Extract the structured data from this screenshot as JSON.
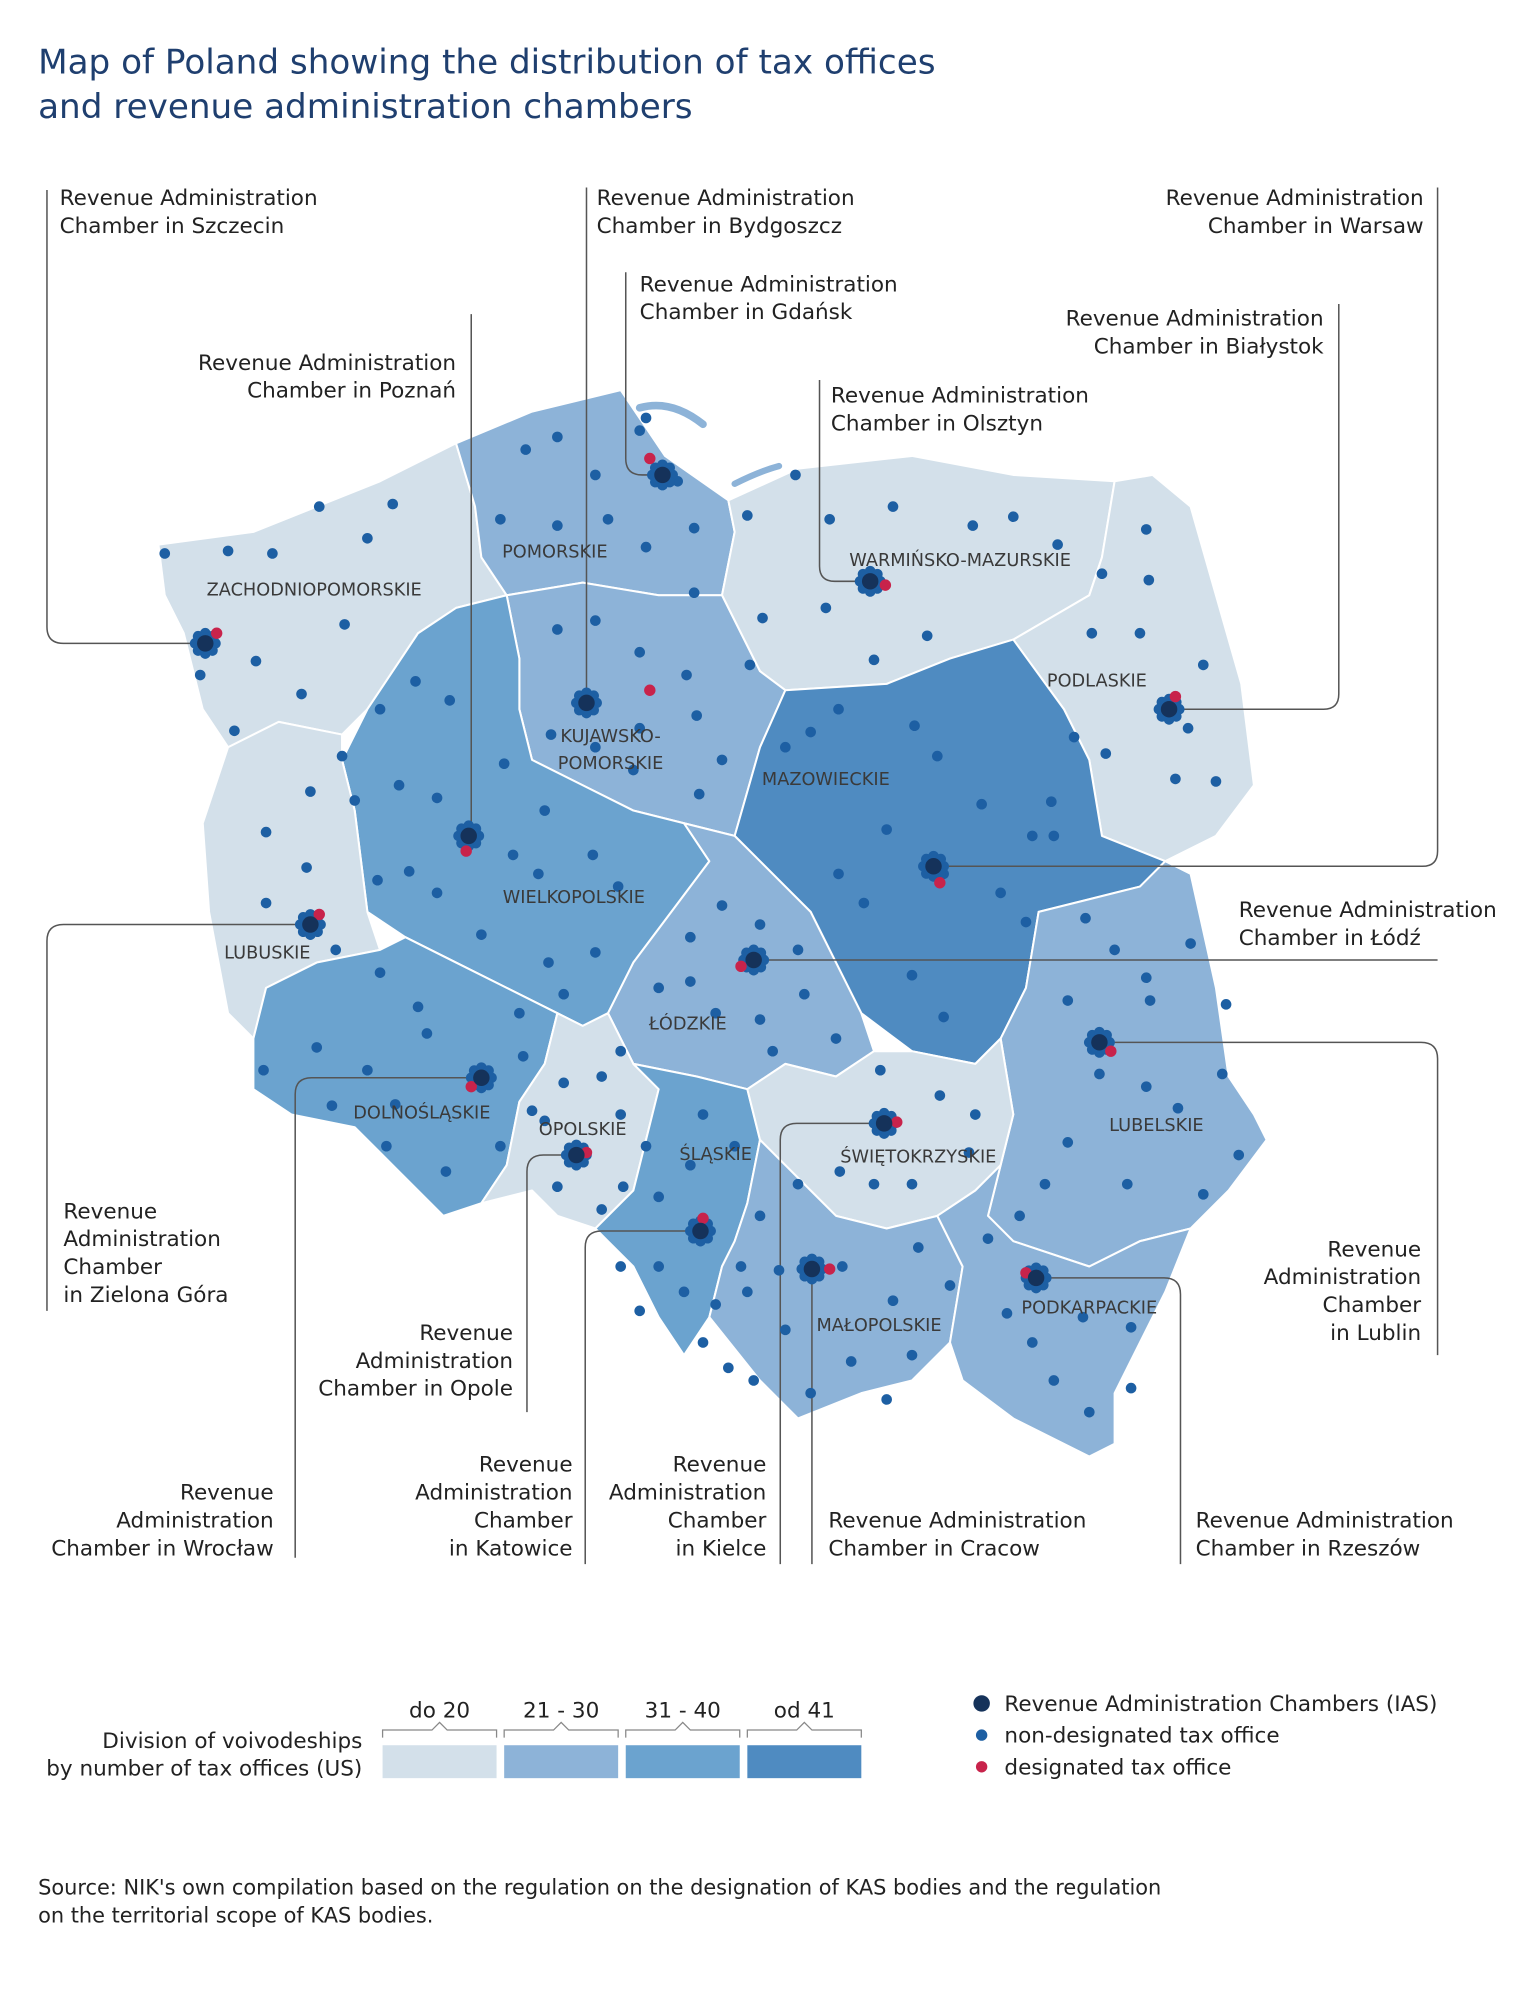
{
  "title": [
    "Map of Poland showing the distribution of tax offices",
    "and revenue administration chambers"
  ],
  "chambers": [
    {
      "label": [
        "Revenue Administration",
        "Chamber in Szczecin"
      ]
    },
    {
      "label": [
        "Revenue Administration",
        "Chamber in Bydgoszcz"
      ]
    },
    {
      "label": [
        "Revenue Administration",
        "Chamber in Gdańsk"
      ]
    },
    {
      "label": [
        "Revenue Administration",
        "Chamber in Poznań"
      ]
    },
    {
      "label": [
        "Revenue Administration",
        "Chamber in Olsztyn"
      ]
    },
    {
      "label": [
        "Revenue Administration",
        "Chamber in Białystok"
      ]
    },
    {
      "label": [
        "Revenue Administration",
        "Chamber in Warsaw"
      ]
    },
    {
      "label": [
        "Revenue Administration",
        "Chamber in Łódź"
      ]
    },
    {
      "label": [
        "Revenue",
        "Administration",
        "Chamber",
        "in Lublin"
      ]
    },
    {
      "label": [
        "Revenue",
        "Administration",
        "Chamber",
        "in Zielona Góra"
      ]
    },
    {
      "label": [
        "Revenue",
        "Administration",
        "Chamber in Opole"
      ]
    },
    {
      "label": [
        "Revenue",
        "Administration",
        "Chamber in Wrocław"
      ]
    },
    {
      "label": [
        "Revenue",
        "Administration",
        "Chamber",
        "in Katowice"
      ]
    },
    {
      "label": [
        "Revenue",
        "Administration",
        "Chamber",
        "in Kielce"
      ]
    },
    {
      "label": [
        "Revenue Administration",
        "Chamber in Cracow"
      ]
    },
    {
      "label": [
        "Revenue Administration",
        "Chamber in Rzeszów"
      ]
    }
  ],
  "regions": [
    {
      "name": [
        "ZACHODNIOPOMORSKIE"
      ]
    },
    {
      "name": [
        "POMORSKIE"
      ]
    },
    {
      "name": [
        "WARMIŃSKO-MAZURSKIE"
      ]
    },
    {
      "name": [
        "PODLASKIE"
      ]
    },
    {
      "name": [
        "KUJAWSKO-",
        "POMORSKIE"
      ]
    },
    {
      "name": [
        "MAZOWIECKIE"
      ]
    },
    {
      "name": [
        "WIELKOPOLSKIE"
      ]
    },
    {
      "name": [
        "LUBUSKIE"
      ]
    },
    {
      "name": [
        "ŁÓDZKIE"
      ]
    },
    {
      "name": [
        "LUBELSKIE"
      ]
    },
    {
      "name": [
        "DOLNOŚLĄSKIE"
      ]
    },
    {
      "name": [
        "OPOLSKIE"
      ]
    },
    {
      "name": [
        "ŚLĄSKIE"
      ]
    },
    {
      "name": [
        "ŚWIĘTOKRZYSKIE"
      ]
    },
    {
      "name": [
        "MAŁOPOLSKIE"
      ]
    },
    {
      "name": [
        "PODKARPACKIE"
      ]
    }
  ],
  "legend": {
    "title": [
      "Division of voivodeships",
      "by number of tax offices (US)"
    ],
    "scale": [
      {
        "label": "do 20",
        "color": "#d3e0ea"
      },
      {
        "label": "21 - 30",
        "color": "#8db3d8"
      },
      {
        "label": "31 - 40",
        "color": "#6ba3cf"
      },
      {
        "label": "od 41",
        "color": "#4f8bc1"
      }
    ],
    "symbols": [
      {
        "label": "Revenue Administration Chambers (IAS)",
        "color": "#15325a"
      },
      {
        "label": "non-designated tax office",
        "color": "#1d5fa3"
      },
      {
        "label": "designated tax office",
        "color": "#c8234b"
      }
    ]
  },
  "source": [
    "Source: NIK's own compilation based on the regulation on the designation of KAS bodies and the regulation",
    "on the territorial scope of KAS bodies."
  ]
}
